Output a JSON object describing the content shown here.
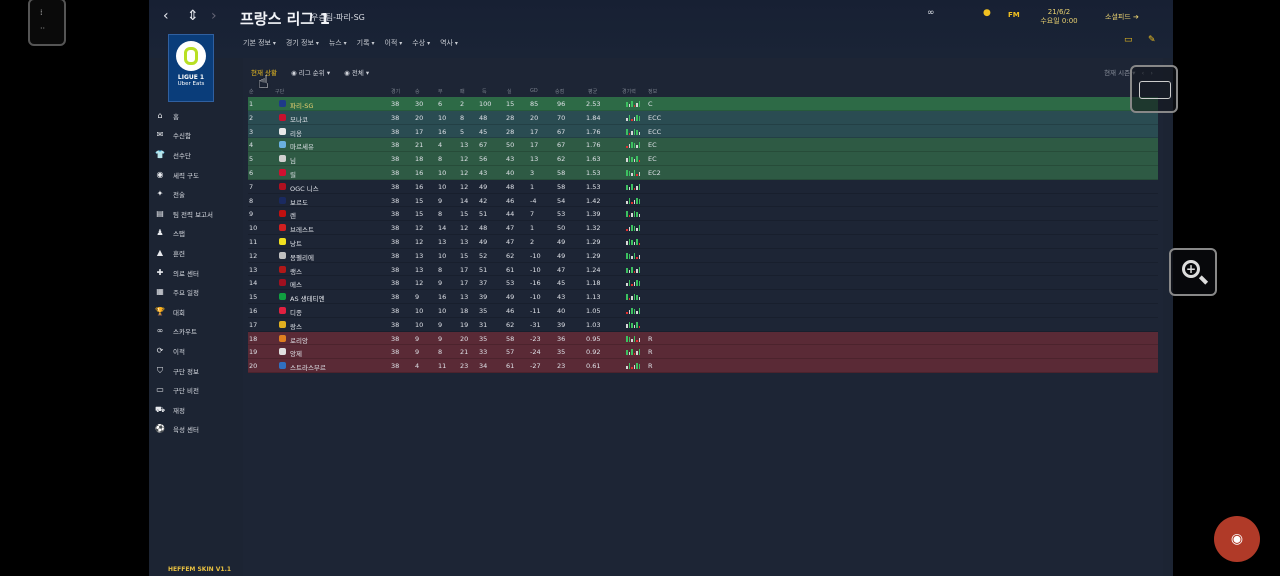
{
  "header": {
    "title": "프랑스 리그 1",
    "subtitle": "우승팀-파리-SG",
    "menu": [
      "기본 정보",
      "경기 정보",
      "뉴스",
      "기록",
      "이적",
      "수상",
      "역사"
    ],
    "date_line1": "21/6/2",
    "date_line2": "수요일 0:00",
    "social_label": "소셜피드",
    "fm_label": "FM"
  },
  "logo": {
    "text": "LIGUE 1",
    "sub": "Uber Eats"
  },
  "sidebar": [
    {
      "label": "홈",
      "icon": "home-icon",
      "glyph": "⌂"
    },
    {
      "label": "수신함",
      "icon": "inbox-icon",
      "glyph": "✉"
    },
    {
      "label": "선수단",
      "icon": "shirt-icon",
      "glyph": "👕"
    },
    {
      "label": "세력 구도",
      "icon": "tactics-icon",
      "glyph": "◉"
    },
    {
      "label": "전술",
      "icon": "tactics-board-icon",
      "glyph": "✦"
    },
    {
      "label": "팀 전력 보고서",
      "icon": "report-icon",
      "glyph": "▤"
    },
    {
      "label": "스탭",
      "icon": "staff-icon",
      "glyph": "♟"
    },
    {
      "label": "훈련",
      "icon": "training-icon",
      "glyph": "▲"
    },
    {
      "label": "의료 센터",
      "icon": "medical-icon",
      "glyph": "✚"
    },
    {
      "label": "주요 일정",
      "icon": "calendar-icon",
      "glyph": "▦"
    },
    {
      "label": "대회",
      "icon": "trophy-icon",
      "glyph": "🏆"
    },
    {
      "label": "스카우트",
      "icon": "binoculars-icon",
      "glyph": "∞"
    },
    {
      "label": "이적",
      "icon": "transfer-icon",
      "glyph": "⟳"
    },
    {
      "label": "구단 정보",
      "icon": "club-icon",
      "glyph": "⛉"
    },
    {
      "label": "구단 비전",
      "icon": "vision-icon",
      "glyph": "▭"
    },
    {
      "label": "재정",
      "icon": "finance-icon",
      "glyph": "⛟"
    },
    {
      "label": "육성 센터",
      "icon": "youth-icon",
      "glyph": "⚽"
    }
  ],
  "skin_label": "HEFFEM SKIN V1.1",
  "filters": {
    "current": "현재 상황",
    "league_rank": "리그 순위",
    "all": "전체",
    "season": "현재 시즌"
  },
  "columns": {
    "team": "구단",
    "played": "경기",
    "won": "승",
    "drawn": "무",
    "lost": "패",
    "gf": "득",
    "ga": "실",
    "gd": "GD",
    "pts": "승점",
    "avg": "평균",
    "form": "경기력",
    "info": "정보"
  },
  "standings": [
    {
      "pos": "1",
      "team": "파리-SG",
      "p": "38",
      "w": "30",
      "d": "6",
      "l": "2",
      "gf": "100",
      "ga": "15",
      "gd": "85",
      "pts": "96",
      "avg": "2.53",
      "info": "C",
      "zone": "green1",
      "color": "#1e3a8a"
    },
    {
      "pos": "2",
      "team": "모나코",
      "p": "38",
      "w": "20",
      "d": "10",
      "l": "8",
      "gf": "48",
      "ga": "28",
      "gd": "20",
      "pts": "70",
      "avg": "1.84",
      "info": "ECC",
      "zone": "teal",
      "color": "#c8102e"
    },
    {
      "pos": "3",
      "team": "리옹",
      "p": "38",
      "w": "17",
      "d": "16",
      "l": "5",
      "gf": "45",
      "ga": "28",
      "gd": "17",
      "pts": "67",
      "avg": "1.76",
      "info": "ECC",
      "zone": "teal",
      "color": "#e8e8e8"
    },
    {
      "pos": "4",
      "team": "마르세유",
      "p": "38",
      "w": "21",
      "d": "4",
      "l": "13",
      "gf": "67",
      "ga": "50",
      "gd": "17",
      "pts": "67",
      "avg": "1.76",
      "info": "EC",
      "zone": "green",
      "color": "#6ab0e0"
    },
    {
      "pos": "5",
      "team": "님",
      "p": "38",
      "w": "18",
      "d": "8",
      "l": "12",
      "gf": "56",
      "ga": "43",
      "gd": "13",
      "pts": "62",
      "avg": "1.63",
      "info": "EC",
      "zone": "green",
      "color": "#d0d0d0"
    },
    {
      "pos": "6",
      "team": "릴",
      "p": "38",
      "w": "16",
      "d": "10",
      "l": "12",
      "gf": "43",
      "ga": "40",
      "gd": "3",
      "pts": "58",
      "avg": "1.53",
      "info": "EC2",
      "zone": "green",
      "color": "#d01030"
    },
    {
      "pos": "7",
      "team": "OGC 니스",
      "p": "38",
      "w": "16",
      "d": "10",
      "l": "12",
      "gf": "49",
      "ga": "48",
      "gd": "1",
      "pts": "58",
      "avg": "1.53",
      "info": "",
      "zone": "",
      "color": "#b01020"
    },
    {
      "pos": "8",
      "team": "보르도",
      "p": "38",
      "w": "15",
      "d": "9",
      "l": "14",
      "gf": "42",
      "ga": "46",
      "gd": "-4",
      "pts": "54",
      "avg": "1.42",
      "info": "",
      "zone": "",
      "color": "#1a2a60"
    },
    {
      "pos": "9",
      "team": "렌",
      "p": "38",
      "w": "15",
      "d": "8",
      "l": "15",
      "gf": "51",
      "ga": "44",
      "gd": "7",
      "pts": "53",
      "avg": "1.39",
      "info": "",
      "zone": "",
      "color": "#c01010"
    },
    {
      "pos": "10",
      "team": "브레스트",
      "p": "38",
      "w": "12",
      "d": "14",
      "l": "12",
      "gf": "48",
      "ga": "47",
      "gd": "1",
      "pts": "50",
      "avg": "1.32",
      "info": "",
      "zone": "",
      "color": "#d02020"
    },
    {
      "pos": "11",
      "team": "낭트",
      "p": "38",
      "w": "12",
      "d": "13",
      "l": "13",
      "gf": "49",
      "ga": "47",
      "gd": "2",
      "pts": "49",
      "avg": "1.29",
      "info": "",
      "zone": "",
      "color": "#f0e020"
    },
    {
      "pos": "12",
      "team": "몽펠리에",
      "p": "38",
      "w": "13",
      "d": "10",
      "l": "15",
      "gf": "52",
      "ga": "62",
      "gd": "-10",
      "pts": "49",
      "avg": "1.29",
      "info": "",
      "zone": "",
      "color": "#c0c0c0"
    },
    {
      "pos": "13",
      "team": "랭스",
      "p": "38",
      "w": "13",
      "d": "8",
      "l": "17",
      "gf": "51",
      "ga": "61",
      "gd": "-10",
      "pts": "47",
      "avg": "1.24",
      "info": "",
      "zone": "",
      "color": "#b01818"
    },
    {
      "pos": "14",
      "team": "메스",
      "p": "38",
      "w": "12",
      "d": "9",
      "l": "17",
      "gf": "37",
      "ga": "53",
      "gd": "-16",
      "pts": "45",
      "avg": "1.18",
      "info": "",
      "zone": "",
      "color": "#a01020"
    },
    {
      "pos": "15",
      "team": "AS 생테티엔",
      "p": "38",
      "w": "9",
      "d": "16",
      "l": "13",
      "gf": "39",
      "ga": "49",
      "gd": "-10",
      "pts": "43",
      "avg": "1.13",
      "info": "",
      "zone": "",
      "color": "#10a040"
    },
    {
      "pos": "16",
      "team": "디종",
      "p": "38",
      "w": "10",
      "d": "10",
      "l": "18",
      "gf": "35",
      "ga": "46",
      "gd": "-11",
      "pts": "40",
      "avg": "1.05",
      "info": "",
      "zone": "",
      "color": "#e02040"
    },
    {
      "pos": "17",
      "team": "랑스",
      "p": "38",
      "w": "10",
      "d": "9",
      "l": "19",
      "gf": "31",
      "ga": "62",
      "gd": "-31",
      "pts": "39",
      "avg": "1.03",
      "info": "",
      "zone": "",
      "color": "#e0b020"
    },
    {
      "pos": "18",
      "team": "로리앙",
      "p": "38",
      "w": "9",
      "d": "9",
      "l": "20",
      "gf": "35",
      "ga": "58",
      "gd": "-23",
      "pts": "36",
      "avg": "0.95",
      "info": "R",
      "zone": "red",
      "color": "#e08020"
    },
    {
      "pos": "19",
      "team": "앙제",
      "p": "38",
      "w": "9",
      "d": "8",
      "l": "21",
      "gf": "33",
      "ga": "57",
      "gd": "-24",
      "pts": "35",
      "avg": "0.92",
      "info": "R",
      "zone": "red",
      "color": "#e0e0e0"
    },
    {
      "pos": "20",
      "team": "스트라스부르",
      "p": "38",
      "w": "4",
      "d": "11",
      "l": "23",
      "gf": "34",
      "ga": "61",
      "gd": "-27",
      "pts": "23",
      "avg": "0.61",
      "info": "R",
      "zone": "red",
      "color": "#3070c0"
    }
  ]
}
